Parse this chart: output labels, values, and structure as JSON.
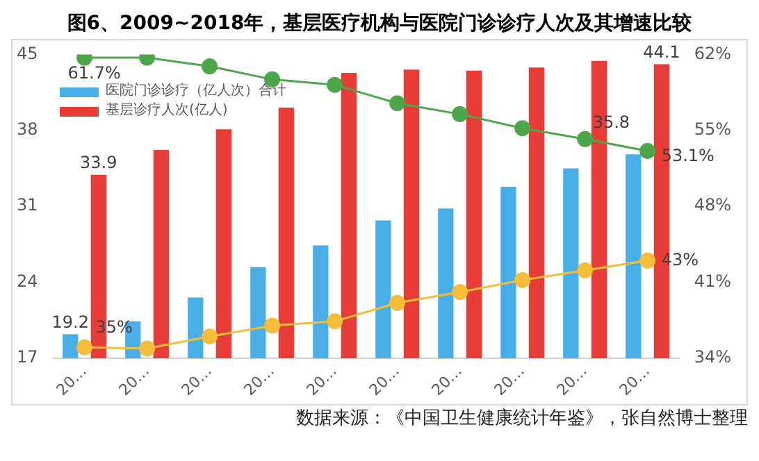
{
  "chart_data": {
    "type": "bar",
    "title": "图6、2009~2018年，基层医疗机构与医院门诊诊疗人次及其增速比较",
    "categories": [
      "20…",
      "20…",
      "20…",
      "20…",
      "20…",
      "20…",
      "20…",
      "20…",
      "20…",
      "20…"
    ],
    "series": [
      {
        "name": "医院门诊诊疗（亿人次）合计",
        "color": "#4aaee6",
        "values": [
          19.2,
          20.4,
          22.6,
          25.4,
          27.4,
          29.7,
          30.8,
          32.8,
          34.5,
          35.8
        ],
        "value_labels": [
          "19.2",
          null,
          null,
          null,
          null,
          null,
          null,
          null,
          null,
          "35.8"
        ]
      },
      {
        "name": "基层诊疗人次(亿人)",
        "color": "#e83d37",
        "values": [
          33.9,
          36.2,
          38.1,
          40.1,
          43.3,
          43.6,
          43.5,
          43.8,
          44.4,
          44.1
        ],
        "value_labels": [
          "33.9",
          null,
          null,
          null,
          null,
          null,
          null,
          null,
          null,
          "44.1"
        ]
      },
      {
        "type": "line",
        "axis": "y2",
        "color": "#4ea64a",
        "values": [
          61.7,
          61.7,
          60.9,
          59.7,
          59.2,
          57.5,
          56.5,
          55.2,
          54.2,
          53.1
        ],
        "value_labels": [
          "61.7%",
          null,
          null,
          null,
          null,
          null,
          null,
          null,
          null,
          "53.1%"
        ]
      },
      {
        "type": "line",
        "axis": "y2",
        "color": "#f5bd3a",
        "values": [
          35,
          34.9,
          36.0,
          37.0,
          37.4,
          39.1,
          40.1,
          41.2,
          42.1,
          43
        ],
        "value_labels": [
          "35%",
          null,
          null,
          null,
          null,
          null,
          null,
          null,
          null,
          "43%"
        ]
      }
    ],
    "ylim": [
      17,
      45
    ],
    "yticks": [
      17,
      24,
      31,
      38,
      45
    ],
    "y2lim": [
      34,
      62
    ],
    "y2ticks": [
      {
        "value": 34,
        "label": "34%"
      },
      {
        "value": 41,
        "label": "41%"
      },
      {
        "value": 48,
        "label": "48%"
      },
      {
        "value": 55,
        "label": "55%"
      },
      {
        "value": 62,
        "label": "62%"
      }
    ],
    "marker": "circle",
    "grid": false,
    "legend": "top left",
    "annotations": [
      "数据来源：《中国卫生健康统计年鉴》，张自然博士整理"
    ]
  }
}
